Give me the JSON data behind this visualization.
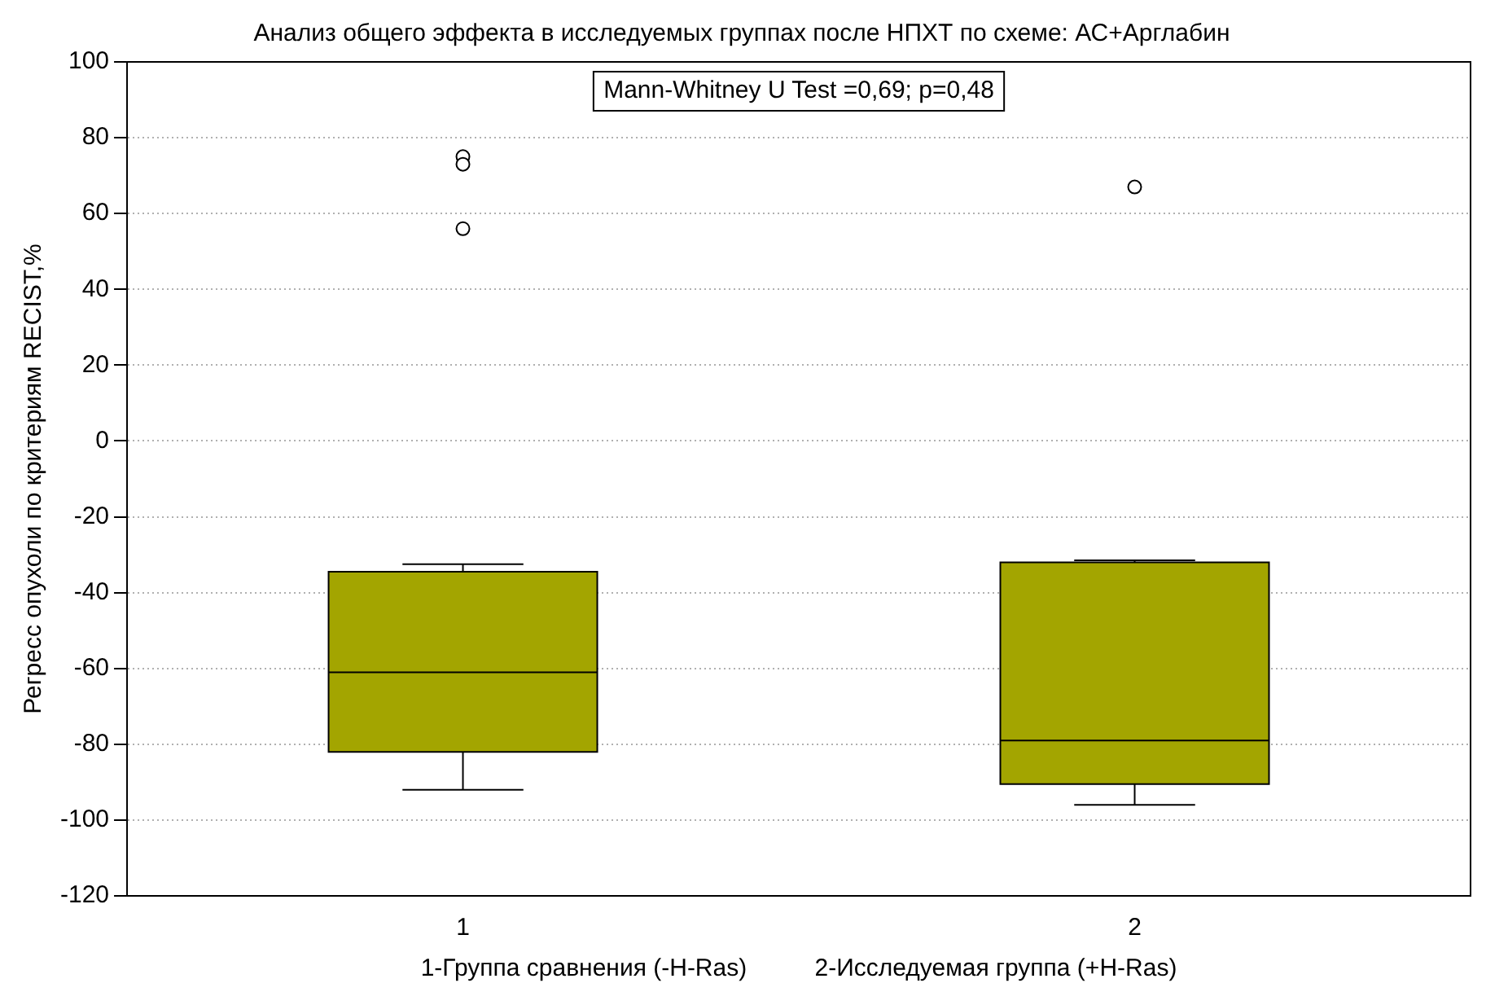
{
  "chart_data": {
    "type": "box",
    "title": "Анализ общего эффекта в исследуемых группах после НПХТ по схеме: АС+Арглабин",
    "xlabel": "1-Группа сравнения (-H-Ras)          2-Исследуемая группа (+H-Ras)",
    "ylabel": "Регресс опухоли по критериям RECIST,%",
    "categories": [
      "1",
      "2"
    ],
    "color": "#a3a500",
    "boxes": [
      {
        "low": -92,
        "q1": -82,
        "median": -61,
        "q3": -34.5,
        "high": -32.5,
        "outliers": [
          75,
          73,
          56
        ]
      },
      {
        "low": -96,
        "q1": -90.5,
        "median": -79,
        "q3": -32,
        "high": -31.5,
        "outliers": [
          67
        ]
      }
    ],
    "ylim": [
      -120,
      100
    ],
    "yticks": [
      -120,
      -100,
      -80,
      -60,
      -40,
      -20,
      0,
      20,
      40,
      60,
      80,
      100
    ],
    "grid": "y",
    "legend": false,
    "annotations": [
      "Mann-Whitney U Test =0,69; p=0,48"
    ]
  }
}
